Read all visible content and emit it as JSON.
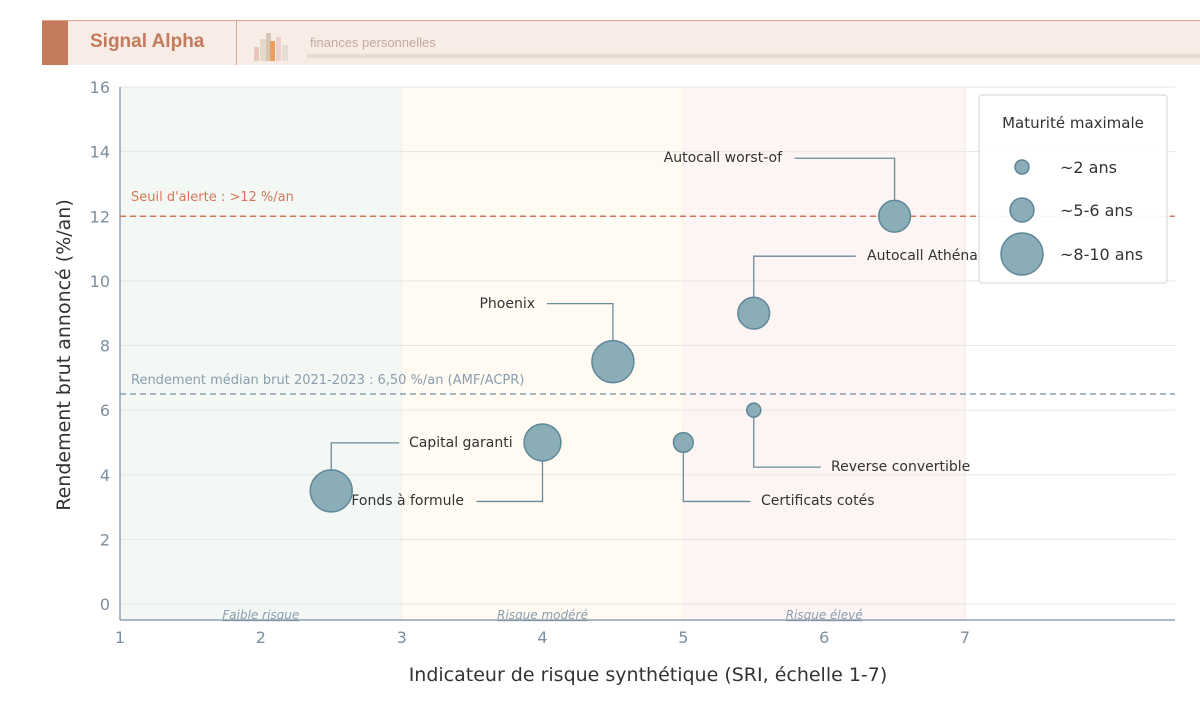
{
  "header": {
    "brand": "Signal Alpha",
    "tagline": "finances personnelles",
    "colors": {
      "accent": "#c47a5c",
      "background": "#f7ece6"
    }
  },
  "chart_data": {
    "type": "scatter",
    "variant": "bubble",
    "xlabel": "Indicateur de risque synthétique (SRI, échelle 1-7)",
    "ylabel": "Rendement brut annoncé (%/an)",
    "xlim": [
      1,
      8.5
    ],
    "ylim": [
      -0.5,
      16
    ],
    "xticks": [
      1,
      2,
      3,
      4,
      5,
      6,
      7
    ],
    "yticks": [
      0,
      2,
      4,
      6,
      8,
      10,
      12,
      14,
      16
    ],
    "grid": "horizontal",
    "zones": [
      {
        "label": "Faible risque",
        "from": 1,
        "to": 3,
        "color": "#f3f8f4"
      },
      {
        "label": "Risque modéré",
        "from": 3,
        "to": 5,
        "color": "#fffbf3"
      },
      {
        "label": "Risque élevé",
        "from": 5,
        "to": 7,
        "color": "#fdf4f4"
      }
    ],
    "reference_lines": [
      {
        "y": 12,
        "label": "Seuil d'alerte : >12 %/an",
        "color": "#d4765c"
      },
      {
        "y": 6.5,
        "label": "Rendement médian brut 2021-2023 : 6,50 %/an (AMF/ACPR)",
        "color": "#8a9eae"
      }
    ],
    "bubble_color": "#8badb8",
    "points": [
      {
        "name": "Autocall worst-of",
        "x": 6.5,
        "y": 12,
        "maturity": 7
      },
      {
        "name": "Autocall Athéna",
        "x": 5.5,
        "y": 9,
        "maturity": 7
      },
      {
        "name": "Phoenix",
        "x": 4.5,
        "y": 7.5,
        "maturity": 9
      },
      {
        "name": "Capital garanti",
        "x": 2.5,
        "y": 3.5,
        "maturity": 9
      },
      {
        "name": "Fonds à formule",
        "x": 4,
        "y": 5,
        "maturity": 8
      },
      {
        "name": "Certificats cotés",
        "x": 5,
        "y": 5,
        "maturity": 4
      },
      {
        "name": "Reverse convertible",
        "x": 5.5,
        "y": 6,
        "maturity": 2
      }
    ],
    "legend": {
      "title": "Maturité maximale",
      "position": "top-right",
      "items": [
        {
          "label": "~2 ans",
          "maturity": 2
        },
        {
          "label": "~5-6 ans",
          "maturity": 5.5
        },
        {
          "label": "~8-10 ans",
          "maturity": 9
        }
      ]
    }
  }
}
